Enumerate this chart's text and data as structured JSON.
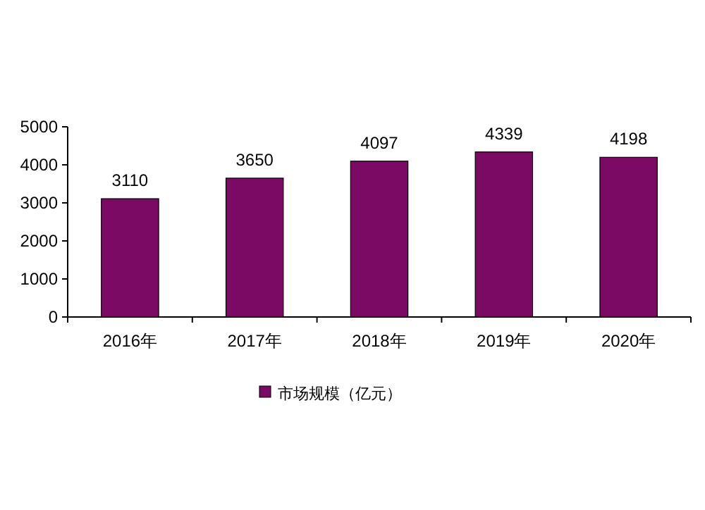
{
  "chart_data": {
    "type": "bar",
    "categories": [
      "2016年",
      "2017年",
      "2018年",
      "2019年",
      "2020年"
    ],
    "series": [
      {
        "name": "市场规模（亿元）",
        "color": "#7a0a64",
        "values": [
          3110,
          3650,
          4097,
          4339,
          4198
        ]
      }
    ],
    "ylim": [
      0,
      5000
    ],
    "yticks": [
      0,
      1000,
      2000,
      3000,
      4000,
      5000
    ],
    "data_labels": true,
    "legend": "bottom",
    "grid": false
  }
}
